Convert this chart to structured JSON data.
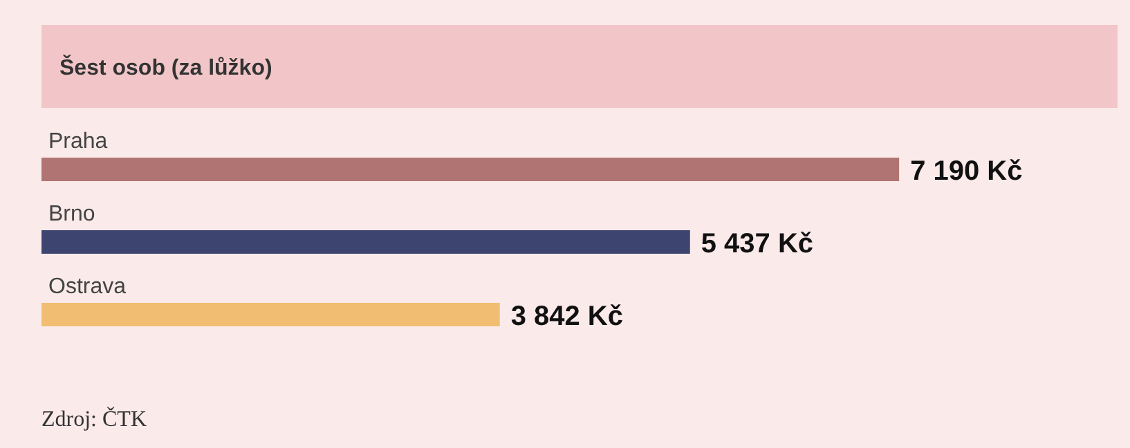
{
  "chart_data": {
    "type": "bar",
    "orientation": "horizontal",
    "title": "Šest osob (za lůžko)",
    "categories": [
      "Praha",
      "Brno",
      "Ostrava"
    ],
    "values": [
      7190,
      5437,
      3842
    ],
    "colors": [
      "#b07572",
      "#3d4470",
      "#f0bd72"
    ],
    "value_labels": [
      "7 190 Kč",
      "5 437 Kč",
      "3 842 Kč"
    ],
    "annotations": [
      "Zdroj: ČTK"
    ]
  }
}
